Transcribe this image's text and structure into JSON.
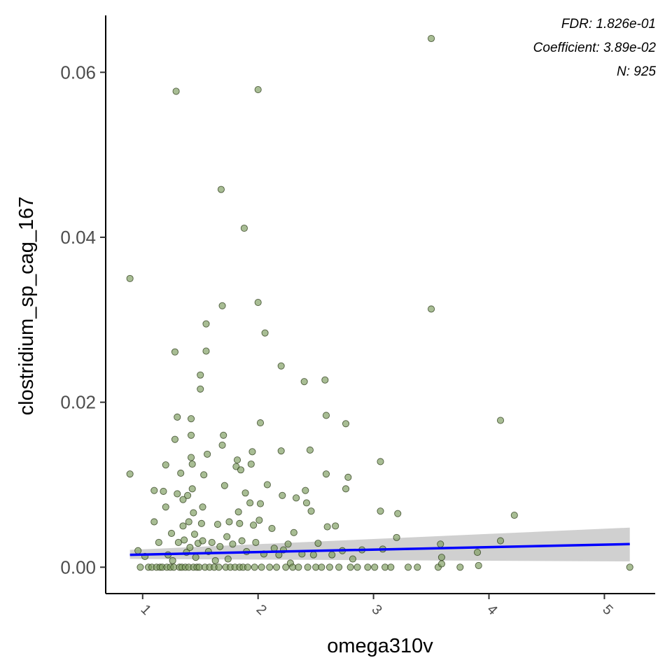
{
  "chart_data": {
    "type": "scatter",
    "title": "",
    "xlabel": "omega310v",
    "ylabel": "clostridium_sp_cag_167",
    "xlim": [
      0.68,
      5.44
    ],
    "ylim": [
      -0.0032,
      0.0669
    ],
    "x_ticks": [
      "1",
      "2",
      "3",
      "4",
      "5"
    ],
    "y_ticks": [
      "0.00",
      "0.02",
      "0.04",
      "0.06"
    ],
    "grid": false,
    "legend": "none",
    "annotations": [
      "FDR: 1.826e-01",
      "Coefficient: 3.89e-02",
      "N: 925"
    ],
    "colors": {
      "point_fill": "#7a9a5a",
      "point_stroke": "#2e3d1c",
      "regression_line": "#0000ff",
      "confidence_band": "#c8c8c8"
    },
    "regression": {
      "x": [
        0.89,
        5.22
      ],
      "y": [
        0.0015,
        0.0028
      ],
      "ci_lower": [
        0.001,
        0.0007
      ],
      "ci_upper": [
        0.0021,
        0.0048
      ]
    },
    "points": [
      [
        0.89,
        0.035
      ],
      [
        0.89,
        0.0113
      ],
      [
        0.96,
        0.002
      ],
      [
        0.98,
        0.0
      ],
      [
        1.02,
        0.0013
      ],
      [
        1.05,
        0.0
      ],
      [
        1.08,
        0.0
      ],
      [
        1.1,
        0.0093
      ],
      [
        1.1,
        0.0055
      ],
      [
        1.12,
        0.0
      ],
      [
        1.14,
        0.003
      ],
      [
        1.15,
        0.0
      ],
      [
        1.17,
        0.0
      ],
      [
        1.18,
        0.0092
      ],
      [
        1.2,
        0.0073
      ],
      [
        1.2,
        0.0124
      ],
      [
        1.21,
        0.0
      ],
      [
        1.22,
        0.0015
      ],
      [
        1.24,
        0.0
      ],
      [
        1.25,
        0.0041
      ],
      [
        1.26,
        0.0008
      ],
      [
        1.27,
        0.0
      ],
      [
        1.28,
        0.0261
      ],
      [
        1.28,
        0.0155
      ],
      [
        1.29,
        0.0577
      ],
      [
        1.3,
        0.0182
      ],
      [
        1.3,
        0.0089
      ],
      [
        1.31,
        0.003
      ],
      [
        1.32,
        0.0
      ],
      [
        1.33,
        0.0114
      ],
      [
        1.34,
        0.0
      ],
      [
        1.35,
        0.0082
      ],
      [
        1.35,
        0.005
      ],
      [
        1.36,
        0.0033
      ],
      [
        1.37,
        0.0
      ],
      [
        1.38,
        0.0018
      ],
      [
        1.39,
        0.0087
      ],
      [
        1.4,
        0.0055
      ],
      [
        1.4,
        0.0
      ],
      [
        1.41,
        0.0024
      ],
      [
        1.42,
        0.018
      ],
      [
        1.42,
        0.016
      ],
      [
        1.42,
        0.0133
      ],
      [
        1.43,
        0.0125
      ],
      [
        1.43,
        0.0095
      ],
      [
        1.44,
        0.0066
      ],
      [
        1.44,
        0.0
      ],
      [
        1.45,
        0.004
      ],
      [
        1.46,
        0.0012
      ],
      [
        1.47,
        0.0
      ],
      [
        1.48,
        0.0029
      ],
      [
        1.49,
        0.0
      ],
      [
        1.5,
        0.0233
      ],
      [
        1.5,
        0.0216
      ],
      [
        1.51,
        0.0053
      ],
      [
        1.52,
        0.0032
      ],
      [
        1.52,
        0.0073
      ],
      [
        1.53,
        0.0112
      ],
      [
        1.54,
        0.0
      ],
      [
        1.55,
        0.0295
      ],
      [
        1.55,
        0.0262
      ],
      [
        1.56,
        0.0137
      ],
      [
        1.57,
        0.0019
      ],
      [
        1.58,
        0.0
      ],
      [
        1.6,
        0.003
      ],
      [
        1.62,
        0.0
      ],
      [
        1.63,
        0.0008
      ],
      [
        1.65,
        0.0052
      ],
      [
        1.66,
        0.0
      ],
      [
        1.67,
        0.0025
      ],
      [
        1.68,
        0.0458
      ],
      [
        1.69,
        0.0317
      ],
      [
        1.69,
        0.0148
      ],
      [
        1.7,
        0.016
      ],
      [
        1.71,
        0.0099
      ],
      [
        1.72,
        0.0
      ],
      [
        1.73,
        0.0037
      ],
      [
        1.74,
        0.001
      ],
      [
        1.75,
        0.0055
      ],
      [
        1.76,
        0.0
      ],
      [
        1.78,
        0.0028
      ],
      [
        1.8,
        0.0
      ],
      [
        1.81,
        0.0122
      ],
      [
        1.82,
        0.013
      ],
      [
        1.83,
        0.0067
      ],
      [
        1.84,
        0.0053
      ],
      [
        1.84,
        0.0
      ],
      [
        1.85,
        0.0118
      ],
      [
        1.86,
        0.0032
      ],
      [
        1.87,
        0.0
      ],
      [
        1.88,
        0.0411
      ],
      [
        1.89,
        0.009
      ],
      [
        1.9,
        0.0019
      ],
      [
        1.91,
        0.0
      ],
      [
        1.93,
        0.0078
      ],
      [
        1.94,
        0.0125
      ],
      [
        1.95,
        0.014
      ],
      [
        1.96,
        0.0051
      ],
      [
        1.97,
        0.0
      ],
      [
        1.98,
        0.003
      ],
      [
        2.0,
        0.0321
      ],
      [
        2.0,
        0.0579
      ],
      [
        2.01,
        0.0057
      ],
      [
        2.02,
        0.0175
      ],
      [
        2.02,
        0.0077
      ],
      [
        2.03,
        0.0
      ],
      [
        2.05,
        0.0016
      ],
      [
        2.06,
        0.0284
      ],
      [
        2.08,
        0.01
      ],
      [
        2.1,
        0.0
      ],
      [
        2.12,
        0.0047
      ],
      [
        2.14,
        0.0023
      ],
      [
        2.16,
        0.0
      ],
      [
        2.18,
        0.0015
      ],
      [
        2.2,
        0.0244
      ],
      [
        2.2,
        0.0141
      ],
      [
        2.21,
        0.0087
      ],
      [
        2.22,
        0.0021
      ],
      [
        2.24,
        0.0
      ],
      [
        2.26,
        0.0028
      ],
      [
        2.28,
        0.0005
      ],
      [
        2.3,
        0.0
      ],
      [
        2.31,
        0.0042
      ],
      [
        2.33,
        0.0084
      ],
      [
        2.35,
        0.0
      ],
      [
        2.38,
        0.0016
      ],
      [
        2.4,
        0.0225
      ],
      [
        2.41,
        0.0093
      ],
      [
        2.42,
        0.0078
      ],
      [
        2.43,
        0.0
      ],
      [
        2.45,
        0.0142
      ],
      [
        2.46,
        0.0068
      ],
      [
        2.48,
        0.0015
      ],
      [
        2.5,
        0.0
      ],
      [
        2.52,
        0.0029
      ],
      [
        2.55,
        0.0
      ],
      [
        2.58,
        0.0227
      ],
      [
        2.59,
        0.0184
      ],
      [
        2.59,
        0.0113
      ],
      [
        2.6,
        0.0049
      ],
      [
        2.62,
        0.0
      ],
      [
        2.64,
        0.0015
      ],
      [
        2.67,
        0.005
      ],
      [
        2.7,
        0.0
      ],
      [
        2.73,
        0.002
      ],
      [
        2.76,
        0.0174
      ],
      [
        2.76,
        0.0095
      ],
      [
        2.78,
        0.0109
      ],
      [
        2.8,
        0.0
      ],
      [
        2.82,
        0.001
      ],
      [
        2.86,
        0.0
      ],
      [
        2.9,
        0.0021
      ],
      [
        2.95,
        0.0
      ],
      [
        3.01,
        0.0
      ],
      [
        3.06,
        0.0128
      ],
      [
        3.06,
        0.0068
      ],
      [
        3.08,
        0.0022
      ],
      [
        3.1,
        0.0
      ],
      [
        3.15,
        0.0
      ],
      [
        3.2,
        0.0036
      ],
      [
        3.21,
        0.0065
      ],
      [
        3.3,
        0.0
      ],
      [
        3.38,
        0.0
      ],
      [
        3.5,
        0.0641
      ],
      [
        3.5,
        0.0313
      ],
      [
        3.56,
        0.0
      ],
      [
        3.58,
        0.0028
      ],
      [
        3.59,
        0.0012
      ],
      [
        3.59,
        0.0004
      ],
      [
        3.75,
        0.0
      ],
      [
        3.9,
        0.0018
      ],
      [
        3.91,
        0.0002
      ],
      [
        4.1,
        0.0178
      ],
      [
        4.1,
        0.0032
      ],
      [
        4.22,
        0.0063
      ],
      [
        5.22,
        0.0
      ]
    ]
  }
}
